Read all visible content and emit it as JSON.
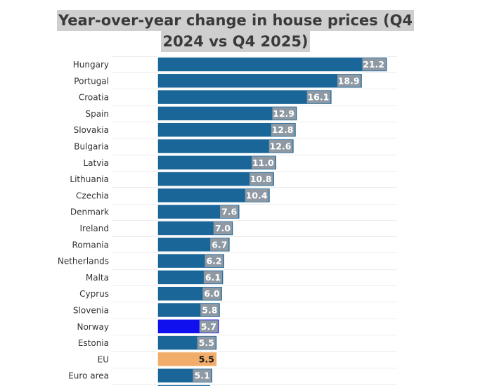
{
  "chart_data": {
    "type": "bar",
    "orientation": "horizontal",
    "title_lines": [
      "Year-over-year change in house prices (Q4",
      "2024 vs Q4 2025)"
    ],
    "categories": [
      "Hungary",
      "Portugal",
      "Croatia",
      "Spain",
      "Slovakia",
      "Bulgaria",
      "Latvia",
      "Lithuania",
      "Czechia",
      "Denmark",
      "Ireland",
      "Romania",
      "Netherlands",
      "Malta",
      "Cyprus",
      "Slovenia",
      "Norway",
      "Estonia",
      "EU",
      "Euro area"
    ],
    "values": [
      21.2,
      18.9,
      16.1,
      12.9,
      12.8,
      12.6,
      11.0,
      10.8,
      10.4,
      7.6,
      7.0,
      6.7,
      6.2,
      6.1,
      6.0,
      5.8,
      5.7,
      5.5,
      5.5,
      5.1
    ],
    "value_labels": [
      "21.2",
      "18.9",
      "16.1",
      "12.9",
      "12.8",
      "12.6",
      "11.0",
      "10.8",
      "10.4",
      "7.6",
      "7.0",
      "6.7",
      "6.2",
      "6.1",
      "6.0",
      "5.8",
      "5.7",
      "5.5",
      "5.5",
      "5.1"
    ],
    "xlim": [
      0,
      21.2
    ],
    "grid": true,
    "colors": {
      "default": "#1a6699",
      "highlight_norway": "#1010ee",
      "highlight_eu": "#f2ad6b",
      "label_box": "#8e99a3",
      "label_box_eu": "#f2ad6b",
      "label_text": "#ffffff",
      "label_text_eu": "#111111",
      "bar_border": "#ffffff"
    },
    "highlight": {
      "Norway": "highlight_norway",
      "EU": "highlight_eu"
    }
  }
}
